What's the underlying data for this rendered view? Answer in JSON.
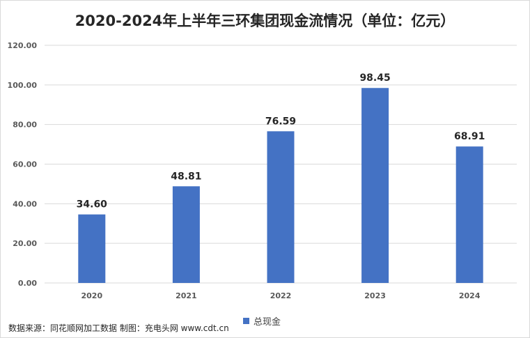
{
  "chart_data": {
    "type": "bar",
    "title": "2020-2024年上半年三环集团现金流情况（单位：亿元）",
    "categories": [
      "2020",
      "2021",
      "2022",
      "2023",
      "2024"
    ],
    "series": [
      {
        "name": "总现金",
        "values": [
          34.6,
          48.81,
          76.59,
          98.45,
          68.91
        ],
        "color": "#4472c4"
      }
    ],
    "data_labels": [
      "34.60",
      "48.81",
      "76.59",
      "98.45",
      "68.91"
    ],
    "y_ticks": [
      "0.00",
      "20.00",
      "40.00",
      "60.00",
      "80.00",
      "100.00",
      "120.00"
    ],
    "ylim": [
      0,
      120
    ],
    "grid": true,
    "legend_position": "bottom"
  },
  "source_note": "数据来源：同花顺网加工数据 制图：充电头网 www.cdt.cn",
  "colors": {
    "bar": "#4472c4",
    "grid": "#d9d9d9"
  }
}
